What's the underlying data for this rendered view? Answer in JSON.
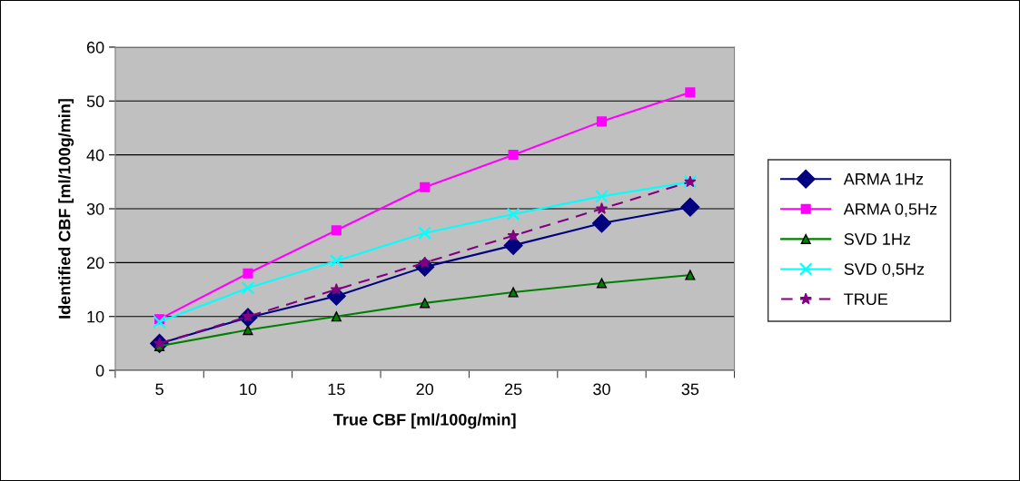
{
  "chart_data": {
    "type": "line",
    "xlabel": "True CBF [ml/100g/min]",
    "ylabel": "Identified CBF [ml/100g/min]",
    "categories": [
      "5",
      "10",
      "15",
      "20",
      "25",
      "30",
      "35"
    ],
    "ylim": [
      0,
      60
    ],
    "yticks": [
      0,
      10,
      20,
      30,
      40,
      50,
      60
    ],
    "grid": "y",
    "legend": "right",
    "series": [
      {
        "name": "ARMA 1Hz",
        "color": "#000080",
        "marker": "diamond",
        "line_style": "solid",
        "values": [
          5.0,
          9.8,
          13.8,
          19.2,
          23.2,
          27.3,
          30.3
        ]
      },
      {
        "name": "ARMA 0,5Hz",
        "color": "#ff00ff",
        "marker": "square",
        "line_style": "solid",
        "values": [
          9.5,
          18,
          26,
          34,
          40,
          46.2,
          51.6
        ]
      },
      {
        "name": "SVD 1Hz",
        "color": "#008000",
        "marker": "triangle",
        "line_style": "solid",
        "values": [
          4.5,
          7.5,
          10,
          12.5,
          14.5,
          16.2,
          17.7
        ]
      },
      {
        "name": "SVD 0,5Hz",
        "color": "#00ffff",
        "marker": "cross",
        "line_style": "solid",
        "values": [
          9,
          15.3,
          20.3,
          25.5,
          29,
          32.3,
          35
        ]
      },
      {
        "name": "TRUE",
        "color": "#800080",
        "marker": "star",
        "line_style": "dashed",
        "values": [
          5,
          10,
          15,
          20,
          25,
          30,
          35
        ]
      }
    ]
  }
}
